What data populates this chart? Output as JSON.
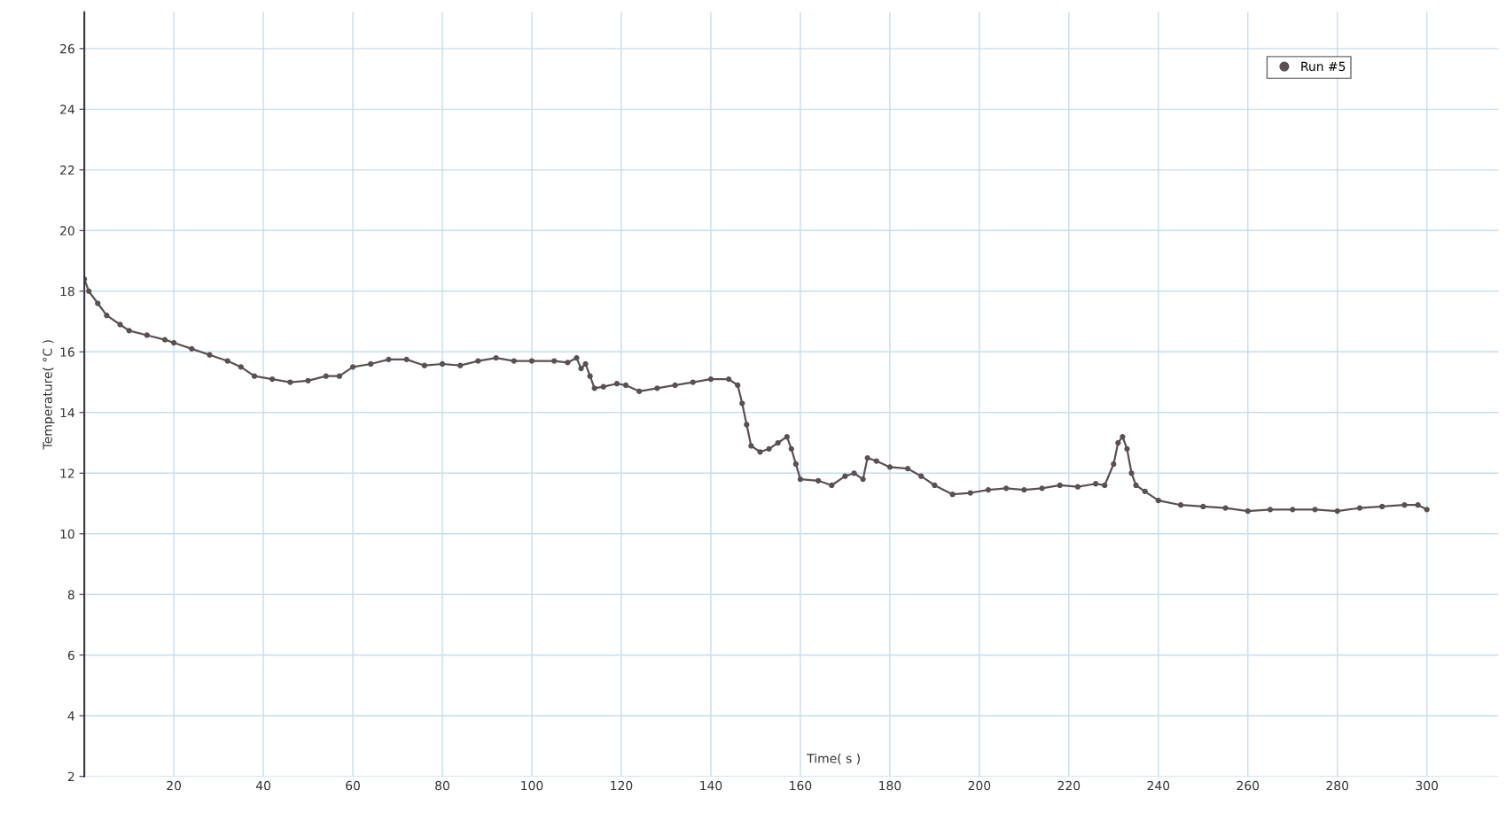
{
  "chart_data": {
    "type": "line",
    "xlabel": "Time( s )",
    "ylabel": "Temperature( °C )",
    "xlim": [
      0,
      316
    ],
    "ylim": [
      2,
      27.2
    ],
    "xticks": [
      20,
      40,
      60,
      80,
      100,
      120,
      140,
      160,
      180,
      200,
      220,
      240,
      260,
      280,
      300
    ],
    "yticks": [
      2,
      4,
      6,
      8,
      10,
      12,
      14,
      16,
      18,
      20,
      22,
      24,
      26
    ],
    "grid": true,
    "legend": "top right",
    "marker": "circle",
    "line_style": "solid",
    "series": [
      {
        "name": "Run #5",
        "color": "#5a5052",
        "x": [
          0,
          1,
          3,
          5,
          8,
          10,
          14,
          18,
          20,
          24,
          28,
          32,
          35,
          38,
          42,
          46,
          50,
          54,
          57,
          60,
          64,
          68,
          72,
          76,
          80,
          84,
          88,
          92,
          96,
          100,
          105,
          108,
          110,
          111,
          112,
          113,
          114,
          116,
          119,
          121,
          124,
          128,
          132,
          136,
          140,
          144,
          146,
          147,
          148,
          149,
          151,
          153,
          155,
          157,
          158,
          159,
          160,
          164,
          167,
          170,
          172,
          174,
          175,
          177,
          180,
          184,
          187,
          190,
          194,
          198,
          202,
          206,
          210,
          214,
          218,
          222,
          226,
          228,
          230,
          231,
          232,
          233,
          234,
          235,
          237,
          240,
          245,
          250,
          255,
          260,
          265,
          270,
          275,
          280,
          285,
          290,
          295,
          298,
          300
        ],
        "values": [
          18.4,
          18.0,
          17.6,
          17.2,
          16.9,
          16.7,
          16.55,
          16.4,
          16.3,
          16.1,
          15.9,
          15.7,
          15.5,
          15.2,
          15.1,
          15.0,
          15.05,
          15.2,
          15.2,
          15.5,
          15.6,
          15.75,
          15.75,
          15.55,
          15.6,
          15.55,
          15.7,
          15.8,
          15.7,
          15.7,
          15.7,
          15.65,
          15.8,
          15.45,
          15.6,
          15.2,
          14.8,
          14.85,
          14.95,
          14.9,
          14.7,
          14.8,
          14.9,
          15.0,
          15.1,
          15.1,
          14.9,
          14.3,
          13.6,
          12.9,
          12.7,
          12.8,
          13.0,
          13.2,
          12.8,
          12.3,
          11.8,
          11.75,
          11.6,
          11.9,
          12.0,
          11.8,
          12.5,
          12.4,
          12.2,
          12.15,
          11.9,
          11.6,
          11.3,
          11.35,
          11.45,
          11.5,
          11.45,
          11.5,
          11.6,
          11.55,
          11.65,
          11.6,
          12.3,
          13.0,
          13.2,
          12.8,
          12.0,
          11.6,
          11.4,
          11.1,
          10.95,
          10.9,
          10.85,
          10.75,
          10.8,
          10.8,
          10.8,
          10.75,
          10.85,
          10.9,
          10.95,
          10.95,
          10.8
        ]
      }
    ]
  }
}
